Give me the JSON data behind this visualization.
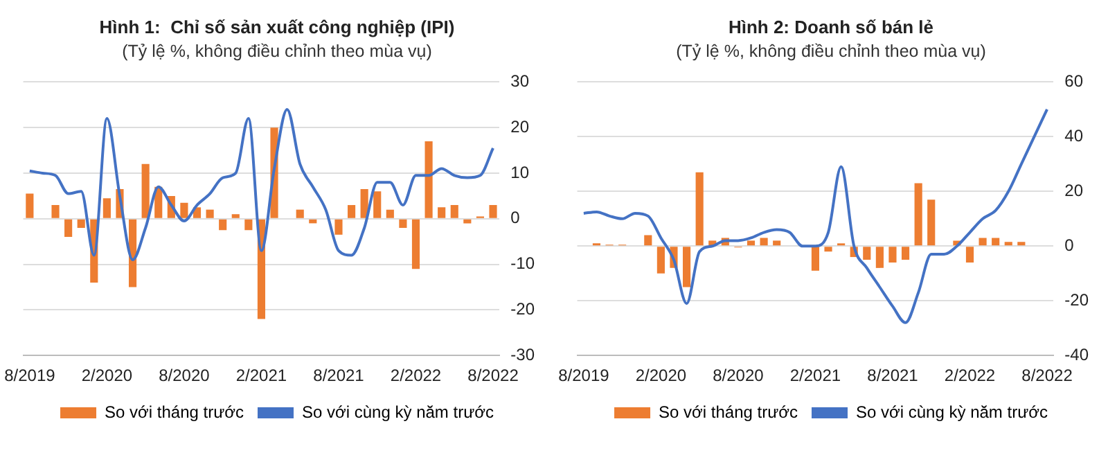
{
  "chart_data": [
    {
      "type": "bar",
      "title": "Hình 1:  Chỉ số sản xuất công nghiệp (IPI)",
      "subtitle": "(Tỷ lệ %, không điều chỉnh theo mùa vụ)",
      "categories": [
        "8/2019",
        null,
        null,
        null,
        null,
        null,
        "2/2020",
        null,
        null,
        null,
        null,
        null,
        "8/2020",
        null,
        null,
        null,
        null,
        null,
        "2/2021",
        null,
        null,
        null,
        null,
        null,
        "8/2021",
        null,
        null,
        null,
        null,
        null,
        "2/2022",
        null,
        null,
        null,
        null,
        null,
        "8/2022"
      ],
      "series": [
        {
          "name": "So với tháng trước",
          "color": "#ed7d31",
          "values": [
            5.5,
            0,
            3,
            -4,
            -2,
            -14,
            4.5,
            6.5,
            -15,
            12,
            7,
            5,
            3.5,
            2.5,
            2,
            -2.5,
            1,
            -2.5,
            -22,
            20,
            0,
            2,
            -1,
            0,
            -3.5,
            3,
            6.5,
            6,
            2,
            -2,
            -11,
            17,
            2.5,
            3,
            -1,
            0.5,
            3
          ]
        },
        {
          "name": "So với cùng kỳ năm trước",
          "type": "line",
          "color": "#4472c4",
          "values": [
            10.5,
            10,
            9.5,
            5.5,
            6,
            -8,
            22,
            5,
            -9,
            -2,
            7,
            3,
            -0.5,
            3,
            5.5,
            9,
            10,
            22,
            -7,
            11,
            24,
            12,
            7,
            2,
            -7,
            -8,
            -2,
            8,
            8,
            3,
            9.5,
            9.5,
            11,
            9.5,
            9,
            9.5,
            15.5
          ]
        }
      ],
      "ylim": [
        -30,
        30
      ],
      "yticks": [
        -30,
        -20,
        -10,
        0,
        10,
        20,
        30
      ],
      "grid": "y",
      "legend": "bottom",
      "marker": "none"
    },
    {
      "type": "bar",
      "title": "Hình 2: Doanh số bán lẻ",
      "subtitle": "(Tỷ lệ %, không điều chỉnh theo mùa vụ)",
      "categories": [
        "8/2019",
        null,
        null,
        null,
        null,
        null,
        "2/2020",
        null,
        null,
        null,
        null,
        null,
        "8/2020",
        null,
        null,
        null,
        null,
        null,
        "2/2021",
        null,
        null,
        null,
        null,
        null,
        "8/2021",
        null,
        null,
        null,
        null,
        null,
        "2/2022",
        null,
        null,
        null,
        null,
        null,
        "8/2022"
      ],
      "series": [
        {
          "name": "So với tháng trước",
          "color": "#ed7d31",
          "values": [
            0,
            1,
            0.5,
            0.5,
            0,
            4,
            -10,
            -8,
            -15,
            27,
            2,
            3,
            -0.5,
            2,
            3,
            2,
            0,
            0,
            -9,
            -2,
            1,
            -4,
            -5,
            -8,
            -6,
            -5,
            23,
            17,
            0,
            2,
            -6,
            3,
            3,
            1.5,
            1.5,
            0,
            0
          ]
        },
        {
          "name": "So với cùng kỳ năm trước",
          "type": "line",
          "color": "#4472c4",
          "values": [
            12,
            12.5,
            11,
            10,
            12,
            11,
            3,
            -5,
            -21,
            -2,
            0,
            2,
            2,
            3,
            5,
            6,
            5,
            0,
            0,
            5,
            29,
            0,
            -8,
            -15,
            -22,
            -28,
            -17,
            -3,
            -3,
            0,
            5,
            10,
            13,
            20,
            30,
            40,
            50
          ]
        }
      ],
      "ylim": [
        -40,
        60
      ],
      "yticks": [
        -40,
        -20,
        0,
        20,
        40,
        60
      ],
      "grid": "y",
      "legend": "bottom",
      "marker": "none"
    }
  ]
}
